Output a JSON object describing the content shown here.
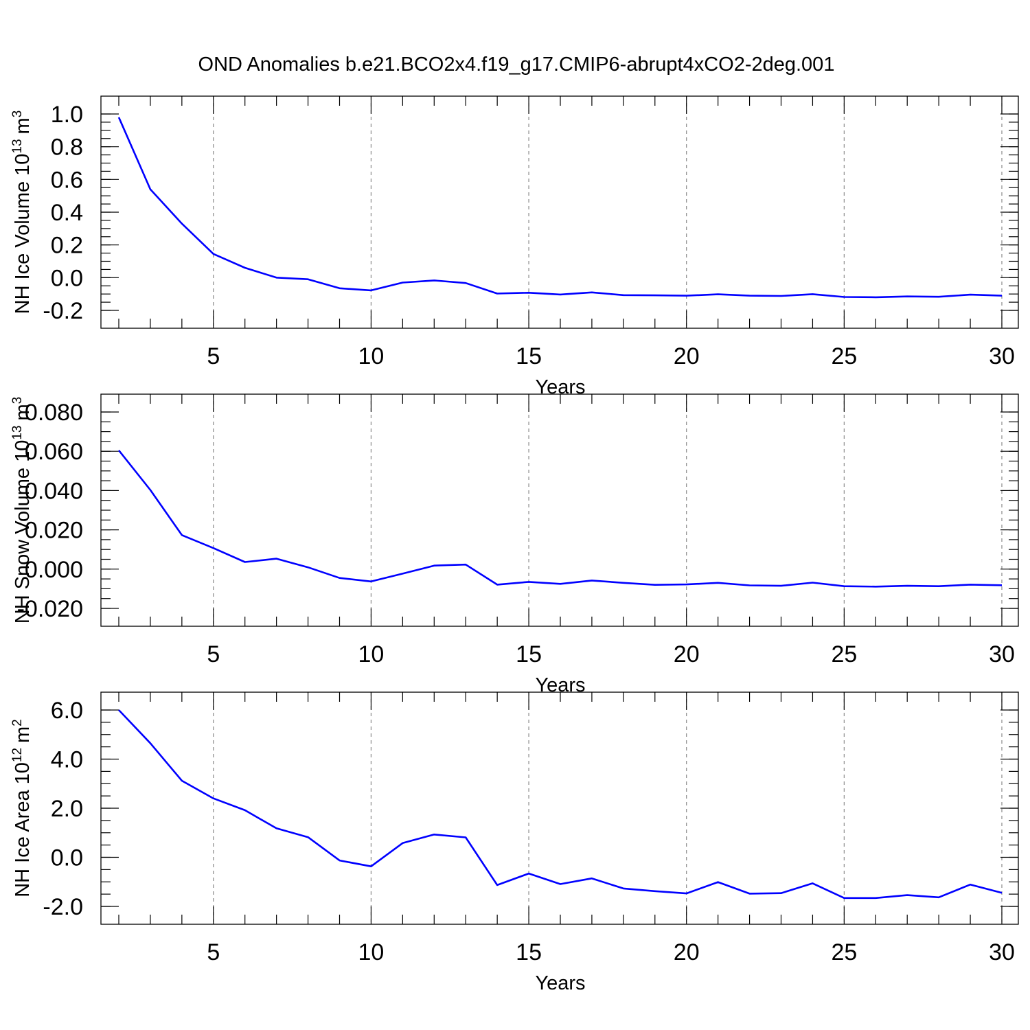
{
  "figure": {
    "title": "OND Anomalies b.e21.BCO2x4.f19_g17.CMIP6-abrupt4xCO2-2deg.001"
  },
  "colors": {
    "series": "#0000ff",
    "grid": "#888888",
    "frame": "#000000"
  },
  "chart_data": [
    {
      "type": "line",
      "ylabel": "NH Ice Volume 10",
      "ylabel_sup": "13",
      "ylabel_unit": "m",
      "ylabel_unit_sup": "3",
      "xlabel": "Years",
      "xlim": [
        2,
        30
      ],
      "ylim": [
        -0.2,
        1.0
      ],
      "yticks": [
        1.0,
        0.8,
        0.6,
        0.4,
        0.2,
        0.0,
        -0.2
      ],
      "ytick_labels": [
        "1.0",
        "0.8",
        "0.6",
        "0.4",
        "0.2",
        "0.0",
        "-0.2"
      ],
      "yminor_step": 0.05,
      "xticks": [
        5,
        10,
        15,
        20,
        25,
        30
      ],
      "xtick_labels": [
        "5",
        "10",
        "15",
        "20",
        "25",
        "30"
      ],
      "grid": "x-dashed",
      "x": [
        2,
        3,
        4,
        5,
        6,
        7,
        8,
        9,
        10,
        11,
        12,
        13,
        14,
        15,
        16,
        17,
        18,
        19,
        20,
        21,
        22,
        23,
        24,
        25,
        26,
        27,
        28,
        29,
        30
      ],
      "series": [
        {
          "values": [
            0.98,
            0.54,
            0.33,
            0.145,
            0.06,
            0.0,
            -0.01,
            -0.065,
            -0.078,
            -0.03,
            -0.017,
            -0.033,
            -0.097,
            -0.092,
            -0.103,
            -0.09,
            -0.107,
            -0.108,
            -0.11,
            -0.102,
            -0.11,
            -0.112,
            -0.101,
            -0.118,
            -0.12,
            -0.115,
            -0.117,
            -0.104,
            -0.11
          ]
        }
      ]
    },
    {
      "type": "line",
      "ylabel": "NH Snow Volume 10",
      "ylabel_sup": "13",
      "ylabel_unit": "m",
      "ylabel_unit_sup": "3",
      "xlabel": "Years",
      "xlim": [
        2,
        30
      ],
      "ylim": [
        -0.02,
        0.08
      ],
      "yticks": [
        0.08,
        0.06,
        0.04,
        0.02,
        0.0,
        -0.02
      ],
      "ytick_labels": [
        "0.080",
        "0.060",
        "0.040",
        "0.020",
        "0.000",
        "-0.020"
      ],
      "yminor_step": 0.005,
      "xticks": [
        5,
        10,
        15,
        20,
        25,
        30
      ],
      "xtick_labels": [
        "5",
        "10",
        "15",
        "20",
        "25",
        "30"
      ],
      "grid": "x-dashed",
      "x": [
        2,
        3,
        4,
        5,
        6,
        7,
        8,
        9,
        10,
        11,
        12,
        13,
        14,
        15,
        16,
        17,
        18,
        19,
        20,
        21,
        22,
        23,
        24,
        25,
        26,
        27,
        28,
        29,
        30
      ],
      "series": [
        {
          "values": [
            0.0605,
            0.0403,
            0.0173,
            0.0107,
            0.0036,
            0.0053,
            0.0009,
            -0.0045,
            -0.0063,
            -0.0023,
            0.0018,
            0.0023,
            -0.0079,
            -0.0065,
            -0.0075,
            -0.0058,
            -0.007,
            -0.008,
            -0.0078,
            -0.007,
            -0.0083,
            -0.0085,
            -0.0069,
            -0.0087,
            -0.0089,
            -0.0085,
            -0.0087,
            -0.0079,
            -0.0082
          ]
        }
      ]
    },
    {
      "type": "line",
      "ylabel": "NH Ice Area 10",
      "ylabel_sup": "12",
      "ylabel_unit": "m",
      "ylabel_unit_sup": "2",
      "xlabel": "Years",
      "xlim": [
        2,
        30
      ],
      "ylim": [
        -2.0,
        6.0
      ],
      "yticks": [
        6.0,
        4.0,
        2.0,
        0.0,
        -2.0
      ],
      "ytick_labels": [
        "6.0",
        "4.0",
        "2.0",
        "0.0",
        "-2.0"
      ],
      "yminor_step": 0.5,
      "xticks": [
        5,
        10,
        15,
        20,
        25,
        30
      ],
      "xtick_labels": [
        "5",
        "10",
        "15",
        "20",
        "25",
        "30"
      ],
      "grid": "x-dashed",
      "x": [
        2,
        3,
        4,
        5,
        6,
        7,
        8,
        9,
        10,
        11,
        12,
        13,
        14,
        15,
        16,
        17,
        18,
        19,
        20,
        21,
        22,
        23,
        24,
        25,
        26,
        27,
        28,
        29,
        30
      ],
      "series": [
        {
          "values": [
            6.0,
            4.65,
            3.12,
            2.4,
            1.92,
            1.18,
            0.82,
            -0.13,
            -0.37,
            0.58,
            0.93,
            0.81,
            -1.13,
            -0.66,
            -1.09,
            -0.86,
            -1.27,
            -1.38,
            -1.47,
            -1.01,
            -1.48,
            -1.46,
            -1.06,
            -1.66,
            -1.66,
            -1.54,
            -1.63,
            -1.11,
            -1.45
          ]
        }
      ]
    }
  ]
}
